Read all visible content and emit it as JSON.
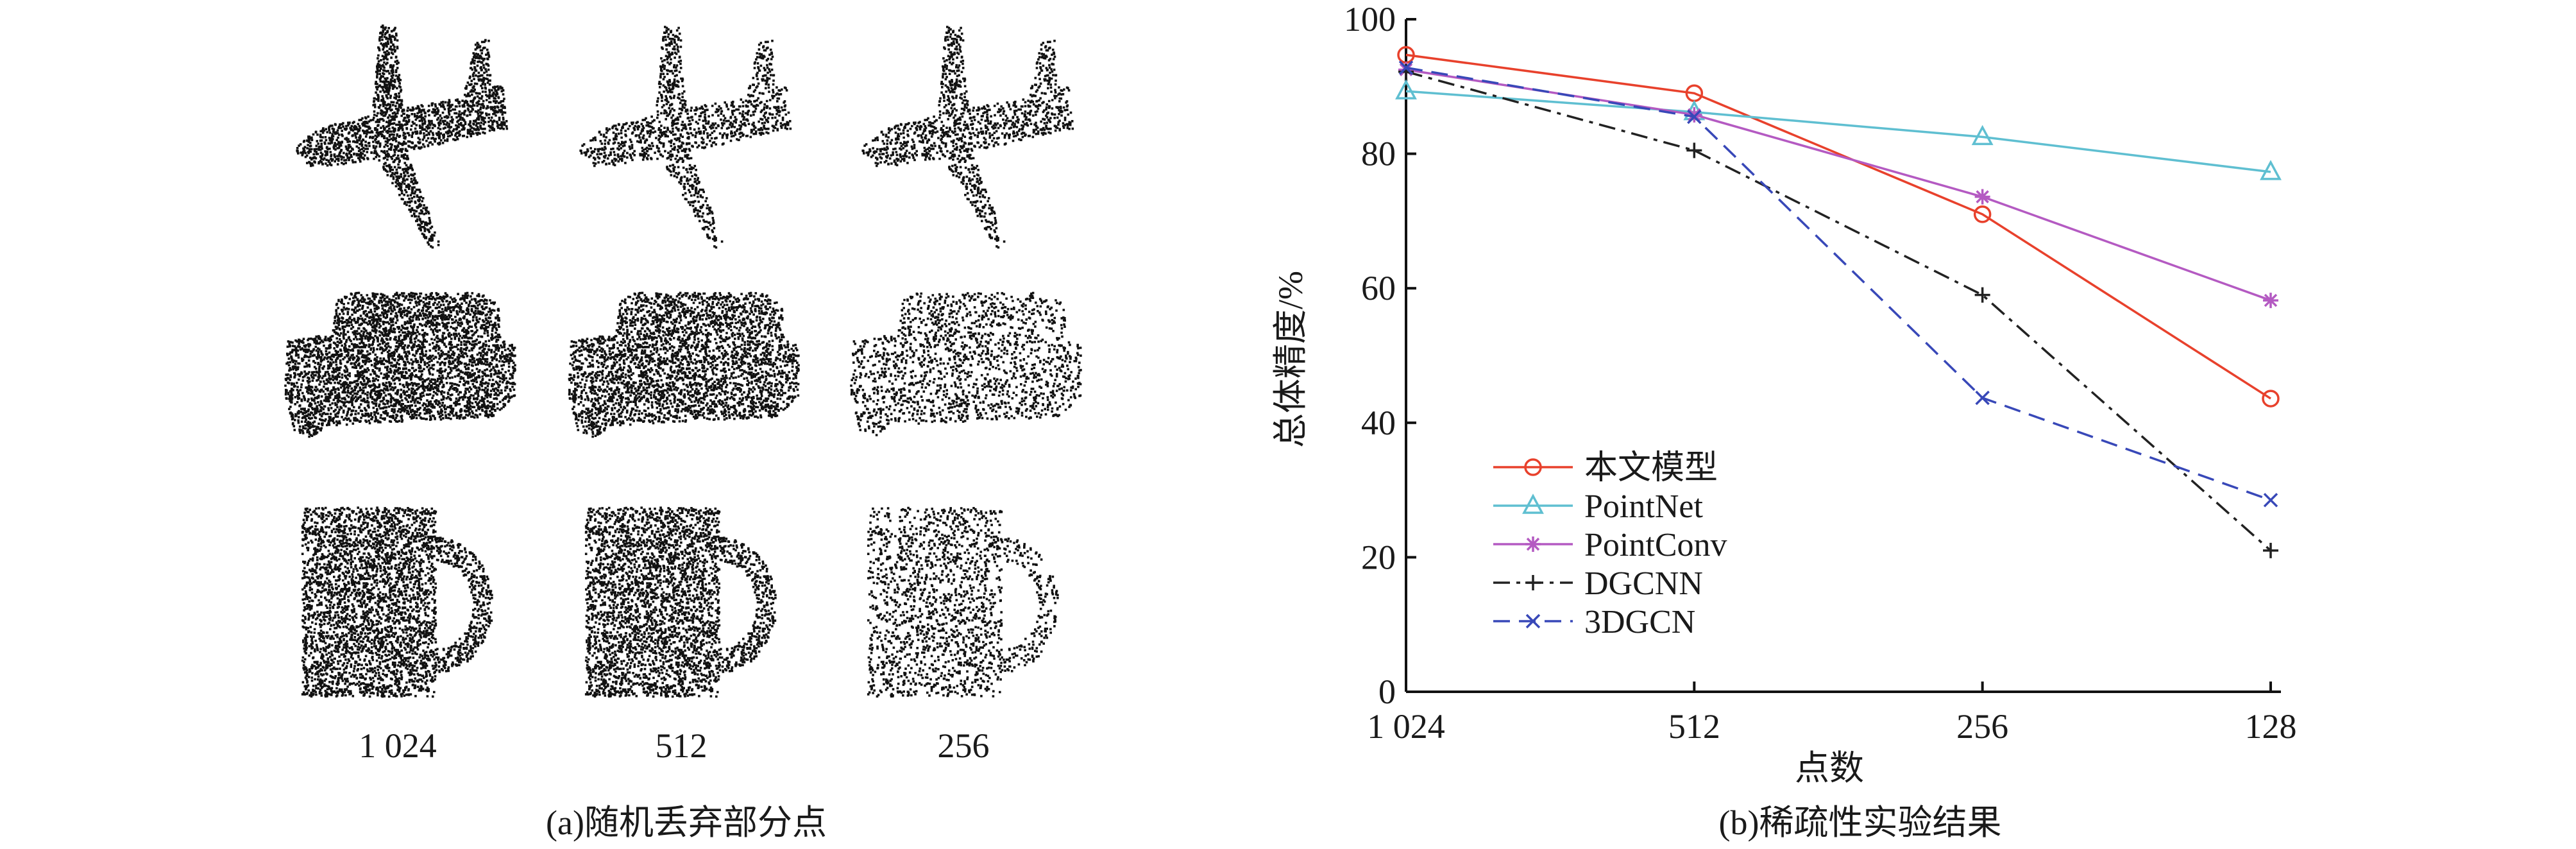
{
  "panel_a": {
    "caption": "(a)随机丢弃部分点",
    "column_labels": [
      "1 024",
      "512",
      "256"
    ],
    "column_fractions": [
      1.0,
      0.5,
      0.25
    ],
    "rows": [
      "airplane",
      "car",
      "mug"
    ]
  },
  "panel_b": {
    "caption": "(b)稀疏性实验结果"
  },
  "chart_data": {
    "type": "line",
    "categories": [
      "1 024",
      "512",
      "256",
      "128"
    ],
    "xlabel": "点数",
    "ylabel": "总体精度/%",
    "ylim": [
      0,
      100
    ],
    "yticks": [
      "0",
      "20",
      "40",
      "60",
      "80",
      "100"
    ],
    "grid": false,
    "legend_position": "bottom-left",
    "series": [
      {
        "name": "本文模型",
        "values": [
          94.7,
          89.0,
          71.0,
          43.6
        ],
        "color": "#e8412c",
        "marker": "circle",
        "dash": ""
      },
      {
        "name": "PointNet",
        "values": [
          89.3,
          86.2,
          82.5,
          77.3
        ],
        "color": "#5fbfd1",
        "marker": "triangle",
        "dash": ""
      },
      {
        "name": "PointConv",
        "values": [
          92.5,
          85.8,
          73.6,
          58.2
        ],
        "color": "#b45ac2",
        "marker": "asterisk",
        "dash": ""
      },
      {
        "name": "DGCNN",
        "values": [
          92.2,
          80.5,
          59.0,
          21.0
        ],
        "color": "#222222",
        "marker": "plus",
        "dash": "26 10 6 10"
      },
      {
        "name": "3DGCN",
        "values": [
          92.8,
          85.5,
          43.7,
          28.5
        ],
        "color": "#3848b8",
        "marker": "x",
        "dash": "26 14"
      }
    ]
  }
}
